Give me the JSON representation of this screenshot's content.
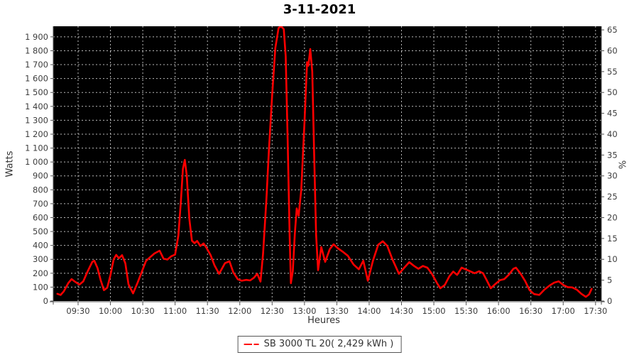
{
  "title": "3-11-2021",
  "axes": {
    "left_title": "Watts",
    "right_title": "%",
    "x_title": "Heures"
  },
  "legend": {
    "label": "SB 3000 TL 20( 2,429 kWh )",
    "marker_color": "#ff0000"
  },
  "chart_data": {
    "type": "line",
    "title": "3-11-2021",
    "xlabel": "Heures",
    "ylabel": "Watts",
    "ylabel_right": "%",
    "plot_bg": "#000000",
    "grid_color": "#b9b9b9",
    "axis_color": "#555555",
    "tick_label_color": "#3d3d3d",
    "grid_on": true,
    "legend_position": "bottom",
    "xlim_hours": [
      9.116,
      17.59
    ],
    "ylim_watts": [
      0,
      1976
    ],
    "watts_per_percent": 30,
    "x_tick_hours": [
      9.5,
      10.0,
      10.5,
      11.0,
      11.5,
      12.0,
      12.5,
      13.0,
      13.5,
      14.0,
      14.5,
      15.0,
      15.5,
      16.0,
      16.5,
      17.0,
      17.5
    ],
    "x_tick_labels": [
      "09:30",
      "10:00",
      "10:30",
      "11:00",
      "11:30",
      "12:00",
      "12:30",
      "13:00",
      "13:30",
      "14:00",
      "14:30",
      "15:00",
      "15:30",
      "16:00",
      "16:30",
      "17:00",
      "17:30"
    ],
    "watts_tick_values": [
      0,
      100,
      200,
      300,
      400,
      500,
      600,
      700,
      800,
      900,
      1000,
      1100,
      1200,
      1300,
      1400,
      1500,
      1600,
      1700,
      1800,
      1900
    ],
    "watts_tick_labels": [
      "0",
      "100",
      "200",
      "300",
      "400",
      "500",
      "600",
      "700",
      "800",
      "900",
      "1 000",
      "1 100",
      "1 200",
      "1 300",
      "1 400",
      "1 500",
      "1 600",
      "1 700",
      "1 800",
      "1 900"
    ],
    "pct_tick_values": [
      0,
      5,
      10,
      15,
      20,
      25,
      30,
      35,
      40,
      45,
      50,
      55,
      60,
      65
    ],
    "pct_tick_labels": [
      "0",
      "5",
      "10",
      "15",
      "20",
      "25",
      "30",
      "35",
      "40",
      "45",
      "50",
      "55",
      "60",
      "65"
    ],
    "series": [
      {
        "name": "SB 3000 TL 20( 2,429 kWh )",
        "color": "#ff0000",
        "points": [
          [
            9.18,
            52
          ],
          [
            9.23,
            44
          ],
          [
            9.28,
            70
          ],
          [
            9.35,
            130
          ],
          [
            9.4,
            158
          ],
          [
            9.45,
            140
          ],
          [
            9.52,
            118
          ],
          [
            9.58,
            142
          ],
          [
            9.65,
            215
          ],
          [
            9.72,
            282
          ],
          [
            9.75,
            290
          ],
          [
            9.8,
            238
          ],
          [
            9.85,
            148
          ],
          [
            9.9,
            78
          ],
          [
            9.95,
            96
          ],
          [
            10.0,
            185
          ],
          [
            10.05,
            300
          ],
          [
            10.09,
            332
          ],
          [
            10.13,
            308
          ],
          [
            10.18,
            330
          ],
          [
            10.23,
            272
          ],
          [
            10.28,
            120
          ],
          [
            10.35,
            55
          ],
          [
            10.42,
            132
          ],
          [
            10.48,
            205
          ],
          [
            10.55,
            288
          ],
          [
            10.62,
            318
          ],
          [
            10.68,
            342
          ],
          [
            10.76,
            362
          ],
          [
            10.82,
            306
          ],
          [
            10.88,
            298
          ],
          [
            10.94,
            322
          ],
          [
            11.0,
            334
          ],
          [
            11.05,
            470
          ],
          [
            11.09,
            720
          ],
          [
            11.12,
            950
          ],
          [
            11.15,
            1015
          ],
          [
            11.18,
            905
          ],
          [
            11.22,
            590
          ],
          [
            11.26,
            434
          ],
          [
            11.3,
            416
          ],
          [
            11.34,
            432
          ],
          [
            11.39,
            396
          ],
          [
            11.44,
            414
          ],
          [
            11.48,
            386
          ],
          [
            11.55,
            330
          ],
          [
            11.61,
            256
          ],
          [
            11.68,
            196
          ],
          [
            11.77,
            272
          ],
          [
            11.84,
            286
          ],
          [
            11.9,
            206
          ],
          [
            11.97,
            156
          ],
          [
            12.03,
            146
          ],
          [
            12.1,
            152
          ],
          [
            12.16,
            148
          ],
          [
            12.22,
            168
          ],
          [
            12.27,
            196
          ],
          [
            12.32,
            140
          ],
          [
            12.36,
            340
          ],
          [
            12.41,
            720
          ],
          [
            12.45,
            1080
          ],
          [
            12.5,
            1480
          ],
          [
            12.55,
            1820
          ],
          [
            12.6,
            1965
          ],
          [
            12.64,
            1976
          ],
          [
            12.68,
            1955
          ],
          [
            12.71,
            1760
          ],
          [
            12.74,
            1150
          ],
          [
            12.77,
            480
          ],
          [
            12.79,
            128
          ],
          [
            12.82,
            215
          ],
          [
            12.85,
            480
          ],
          [
            12.88,
            666
          ],
          [
            12.91,
            612
          ],
          [
            12.95,
            800
          ],
          [
            13.0,
            1280
          ],
          [
            13.04,
            1718
          ],
          [
            13.06,
            1692
          ],
          [
            13.09,
            1812
          ],
          [
            13.12,
            1650
          ],
          [
            13.15,
            1050
          ],
          [
            13.18,
            480
          ],
          [
            13.21,
            222
          ],
          [
            13.26,
            388
          ],
          [
            13.32,
            282
          ],
          [
            13.39,
            372
          ],
          [
            13.45,
            408
          ],
          [
            13.52,
            378
          ],
          [
            13.6,
            352
          ],
          [
            13.67,
            326
          ],
          [
            13.76,
            262
          ],
          [
            13.84,
            228
          ],
          [
            13.91,
            290
          ],
          [
            13.98,
            146
          ],
          [
            14.06,
            292
          ],
          [
            14.14,
            405
          ],
          [
            14.21,
            430
          ],
          [
            14.28,
            396
          ],
          [
            14.36,
            300
          ],
          [
            14.46,
            196
          ],
          [
            14.54,
            238
          ],
          [
            14.62,
            280
          ],
          [
            14.69,
            254
          ],
          [
            14.76,
            232
          ],
          [
            14.83,
            252
          ],
          [
            14.9,
            240
          ],
          [
            14.97,
            196
          ],
          [
            15.05,
            128
          ],
          [
            15.1,
            92
          ],
          [
            15.17,
            116
          ],
          [
            15.24,
            178
          ],
          [
            15.3,
            212
          ],
          [
            15.36,
            188
          ],
          [
            15.43,
            240
          ],
          [
            15.5,
            226
          ],
          [
            15.57,
            212
          ],
          [
            15.63,
            200
          ],
          [
            15.7,
            214
          ],
          [
            15.76,
            200
          ],
          [
            15.82,
            148
          ],
          [
            15.88,
            92
          ],
          [
            15.95,
            122
          ],
          [
            16.02,
            150
          ],
          [
            16.09,
            158
          ],
          [
            16.16,
            190
          ],
          [
            16.23,
            232
          ],
          [
            16.27,
            240
          ],
          [
            16.34,
            198
          ],
          [
            16.41,
            145
          ],
          [
            16.48,
            78
          ],
          [
            16.55,
            50
          ],
          [
            16.63,
            44
          ],
          [
            16.71,
            82
          ],
          [
            16.79,
            112
          ],
          [
            16.86,
            132
          ],
          [
            16.93,
            142
          ],
          [
            17.0,
            116
          ],
          [
            17.07,
            100
          ],
          [
            17.14,
            98
          ],
          [
            17.21,
            82
          ],
          [
            17.28,
            52
          ],
          [
            17.35,
            30
          ],
          [
            17.4,
            48
          ],
          [
            17.44,
            88
          ]
        ]
      }
    ]
  }
}
